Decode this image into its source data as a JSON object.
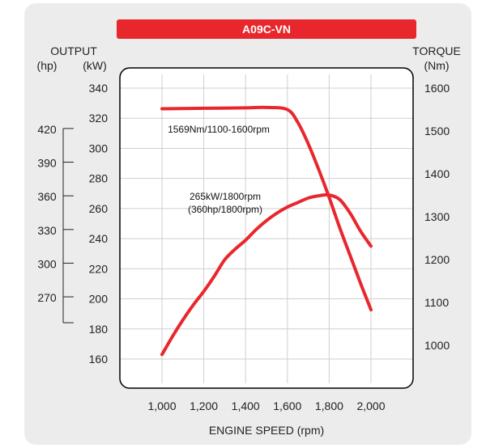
{
  "chart_data": {
    "type": "line",
    "title": "A09C-VN",
    "xlabel": "ENGINE SPEED (rpm)",
    "x_ticks": [
      1000,
      1200,
      1400,
      1600,
      1800,
      2000
    ],
    "x_tick_labels": [
      "1,000",
      "1,200",
      "1,400",
      "1,600",
      "1,800",
      "2,000"
    ],
    "xlim": [
      1000,
      2000
    ],
    "left_axis_title": "OUTPUT",
    "left_axis_units": [
      "(hp)",
      "(kW)"
    ],
    "kw_ticks": [
      160,
      180,
      200,
      220,
      240,
      260,
      280,
      300,
      320,
      340
    ],
    "kw_lim": [
      160,
      340
    ],
    "hp_ticks": [
      270,
      300,
      330,
      360,
      390,
      420
    ],
    "right_axis_title": "TORQUE",
    "right_axis_unit": "(Nm)",
    "nm_ticks": [
      1000,
      1100,
      1200,
      1300,
      1400,
      1500,
      1600
    ],
    "nm_lim": [
      760,
      1600
    ],
    "grid": true,
    "series": [
      {
        "axis": "torque",
        "x": [
          1000,
          1200,
          1400,
          1500,
          1600,
          1650,
          1700,
          1750,
          1800,
          1850,
          1900,
          1950,
          2000
        ],
        "y": [
          1552,
          1553,
          1554,
          1555,
          1550,
          1520,
          1470,
          1410,
          1345,
          1275,
          1210,
          1145,
          1083
        ]
      },
      {
        "axis": "output",
        "x": [
          1000,
          1050,
          1100,
          1150,
          1200,
          1250,
          1300,
          1350,
          1400,
          1450,
          1500,
          1550,
          1600,
          1650,
          1700,
          1750,
          1800,
          1850,
          1900,
          1950,
          2000
        ],
        "y": [
          163,
          175,
          186,
          196,
          205,
          215,
          226,
          233,
          239,
          246,
          252,
          257,
          261,
          264,
          267,
          268.5,
          269,
          266,
          257,
          245,
          235
        ]
      }
    ],
    "annotations": [
      {
        "text": "1569Nm/1100-1600rpm"
      },
      {
        "text": "265kW/1800rpm"
      },
      {
        "text": "(360hp/1800rpm)"
      }
    ],
    "colors": {
      "line": "#e8272d",
      "title_bar": "#e8272d",
      "frame": "#000000",
      "grid": "#cfcfcf",
      "background": "#ececec",
      "plot_area": "#ffffff"
    }
  }
}
